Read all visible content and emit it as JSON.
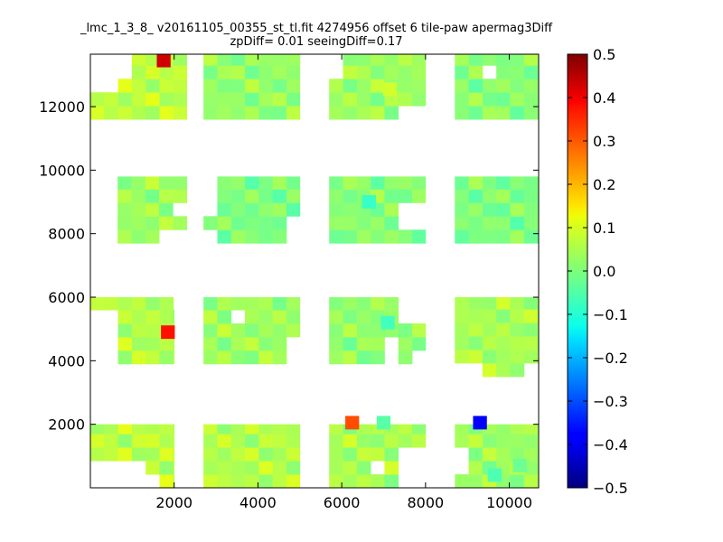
{
  "chart_data": {
    "type": "heatmap",
    "title": "_lmc_1_3_8_ v20161105_00355_st_tl.fit 4274956 offset 6 tile-paw apermag3Diff",
    "subtitle": "zpDiff= 0.01 seeingDiff=0.17",
    "xlabel": "",
    "ylabel": "",
    "xlim": [
      0,
      10700
    ],
    "ylim": [
      0,
      13650
    ],
    "x_ticks": [
      2000,
      4000,
      6000,
      8000,
      10000
    ],
    "y_ticks": [
      2000,
      4000,
      6000,
      8000,
      10000,
      12000
    ],
    "x_tick_labels": [
      "2000",
      "4000",
      "6000",
      "8000",
      "10000"
    ],
    "y_tick_labels": [
      "2000",
      "4000",
      "6000",
      "8000",
      "10000",
      "12000"
    ],
    "cell_size": [
      330,
      425
    ],
    "colormap": "jet",
    "color_range": [
      -0.5,
      0.5
    ],
    "colorbar_ticks": [
      0.5,
      0.4,
      0.3,
      0.2,
      0.1,
      0.0,
      -0.1,
      -0.2,
      -0.3,
      -0.4,
      -0.5
    ],
    "colorbar_tick_labels": [
      "0.5",
      "0.4",
      "0.3",
      "0.2",
      "0.1",
      "0.0",
      "−0.1",
      "−0.2",
      "−0.3",
      "−0.4",
      "−0.5"
    ],
    "blocks": [
      {
        "x0": 0,
        "y0": 0,
        "x1": 2000,
        "y1": 2000,
        "base": 0.06
      },
      {
        "x0": 2700,
        "y0": 0,
        "x1": 5000,
        "y1": 2000,
        "base": 0.05
      },
      {
        "x0": 5700,
        "y0": 0,
        "x1": 8000,
        "y1": 2000,
        "base": 0.04
      },
      {
        "x0": 8700,
        "y0": 0,
        "x1": 10700,
        "y1": 2000,
        "base": 0.03
      },
      {
        "x0": 0,
        "y0": 3900,
        "x1": 2000,
        "y1": 6000,
        "base": 0.05
      },
      {
        "x0": 2700,
        "y0": 3900,
        "x1": 5000,
        "y1": 6000,
        "base": 0.03
      },
      {
        "x0": 5700,
        "y0": 3900,
        "x1": 8000,
        "y1": 6000,
        "base": 0.02
      },
      {
        "x0": 8700,
        "y0": 3500,
        "x1": 10700,
        "y1": 6000,
        "base": 0.04
      },
      {
        "x0": 650,
        "y0": 7700,
        "x1": 2300,
        "y1": 9800,
        "base": 0.03
      },
      {
        "x0": 2700,
        "y0": 7700,
        "x1": 5000,
        "y1": 9800,
        "base": 0.0
      },
      {
        "x0": 5700,
        "y0": 7700,
        "x1": 8000,
        "y1": 9800,
        "base": 0.01
      },
      {
        "x0": 8700,
        "y0": 7700,
        "x1": 10700,
        "y1": 9800,
        "base": 0.0
      },
      {
        "x0": 0,
        "y0": 11600,
        "x1": 2300,
        "y1": 13650,
        "base": 0.06
      },
      {
        "x0": 2700,
        "y0": 11600,
        "x1": 5000,
        "y1": 13650,
        "base": 0.02
      },
      {
        "x0": 5700,
        "y0": 11600,
        "x1": 8000,
        "y1": 13650,
        "base": 0.03
      },
      {
        "x0": 8700,
        "y0": 11600,
        "x1": 10700,
        "y1": 13650,
        "base": 0.01
      }
    ],
    "holes": [
      [
        0,
        0,
        1300,
        1000
      ],
      [
        1300,
        0,
        1500,
        500
      ],
      [
        4600,
        400,
        4800,
        800
      ],
      [
        6800,
        400,
        7100,
        800
      ],
      [
        7400,
        0,
        8000,
        1100
      ],
      [
        8700,
        400,
        8900,
        1200
      ],
      [
        0,
        3900,
        650,
        5600
      ],
      [
        1900,
        5600,
        2000,
        6000
      ],
      [
        3300,
        5000,
        3700,
        5500
      ],
      [
        4600,
        3900,
        5000,
        4800
      ],
      [
        7000,
        4100,
        7200,
        4600
      ],
      [
        7600,
        3900,
        8000,
        4300
      ],
      [
        7400,
        5300,
        8000,
        6000
      ],
      [
        8700,
        3500,
        9300,
        4000
      ],
      [
        10300,
        3500,
        10700,
        4000
      ],
      [
        650,
        9100,
        800,
        9800
      ],
      [
        1600,
        7700,
        2300,
        8200
      ],
      [
        1900,
        8600,
        2300,
        9100
      ],
      [
        2700,
        7700,
        3000,
        8200
      ],
      [
        2700,
        8600,
        3000,
        9800
      ],
      [
        4600,
        7700,
        5000,
        8500
      ],
      [
        7300,
        8200,
        8000,
        9100
      ],
      [
        0,
        12400,
        650,
        13650
      ],
      [
        650,
        12800,
        1000,
        13650
      ],
      [
        1300,
        11600,
        1400,
        12100
      ],
      [
        2300,
        13200,
        2700,
        13650
      ],
      [
        5000,
        11600,
        5700,
        12400
      ],
      [
        5700,
        12800,
        6000,
        13650
      ],
      [
        7300,
        11600,
        8000,
        12000
      ],
      [
        9300,
        12900,
        9650,
        13300
      ]
    ],
    "cells": [
      {
        "x": 1750,
        "y": 13450,
        "value": 0.42
      },
      {
        "x": 1850,
        "y": 4900,
        "value": 0.36
      },
      {
        "x": 6250,
        "y": 2050,
        "value": 0.3
      },
      {
        "x": 9300,
        "y": 2050,
        "value": -0.38
      },
      {
        "x": 6650,
        "y": 9000,
        "value": -0.07
      },
      {
        "x": 7100,
        "y": 5200,
        "value": -0.06
      },
      {
        "x": 7000,
        "y": 2050,
        "value": -0.04
      },
      {
        "x": 9650,
        "y": 400,
        "value": -0.05
      },
      {
        "x": 10250,
        "y": 700,
        "value": -0.02
      },
      {
        "x": 7150,
        "y": 12550,
        "value": 0.08
      }
    ]
  }
}
